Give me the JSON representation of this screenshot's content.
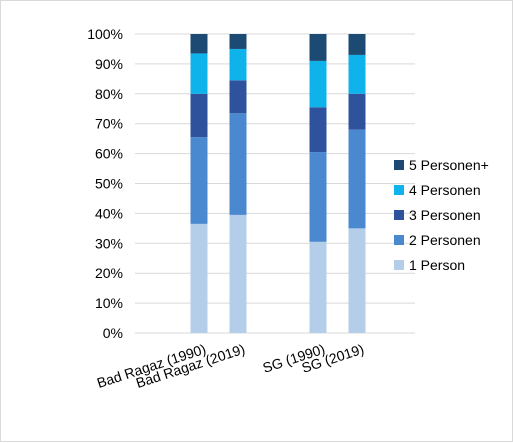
{
  "chart_data": {
    "type": "bar",
    "stacked": true,
    "title": "",
    "xlabel": "",
    "ylabel": "",
    "ylim": [
      0,
      100
    ],
    "y_tick_labels": [
      "0%",
      "10%",
      "20%",
      "30%",
      "40%",
      "50%",
      "60%",
      "70%",
      "80%",
      "90%",
      "100%"
    ],
    "categories": [
      "Bad Ragaz (1990)",
      "Bad Ragaz (2019)",
      "SG (1990)",
      "SG (2019)"
    ],
    "series": [
      {
        "name": "1 Person",
        "color": "#b4cde9",
        "values": [
          36.5,
          39.5,
          30.5,
          35
        ]
      },
      {
        "name": "2 Personen",
        "color": "#4a88cf",
        "values": [
          29,
          34,
          30,
          33
        ]
      },
      {
        "name": "3 Personen",
        "color": "#2e539c",
        "values": [
          14.5,
          11,
          15,
          12
        ]
      },
      {
        "name": "4 Personen",
        "color": "#0fb3ec",
        "values": [
          13.5,
          10.5,
          15.5,
          13
        ]
      },
      {
        "name": "5 Personen+",
        "color": "#1c4a73",
        "values": [
          6.5,
          5,
          9,
          7
        ]
      }
    ],
    "grid": true,
    "legend_position": "right"
  }
}
